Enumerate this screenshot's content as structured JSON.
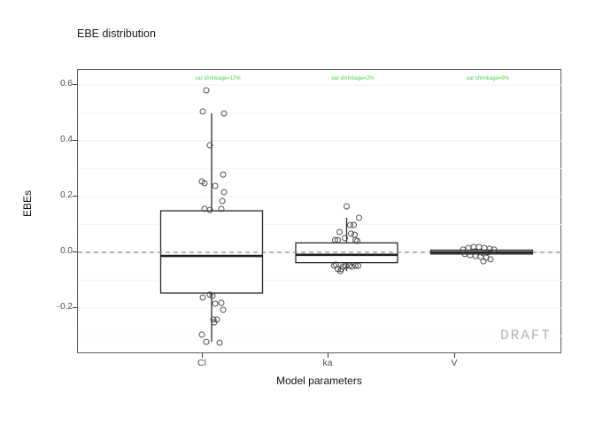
{
  "watermark": "DRAFT",
  "colors": {
    "annotation_green": "#4fd24f",
    "box_stroke": "#2b2b2b",
    "point_stroke": "#404040",
    "reference_line": "#8c8c8c",
    "grid_major": "#ededed",
    "grid_minor": "#f6f6f6",
    "watermark_gray": "#b3b3b3",
    "axis_text": "#4d4d4d"
  },
  "chart_data": {
    "type": "boxplot",
    "title": "EBE distribution",
    "xlabel": "Model parameters",
    "ylabel": "EBEs",
    "categories": [
      "Cl",
      "ka",
      "V"
    ],
    "y_ticks": [
      {
        "value": 0.6,
        "label": "0.6"
      },
      {
        "value": 0.4,
        "label": "0.4"
      },
      {
        "value": 0.2,
        "label": "0.2"
      },
      {
        "value": 0.0,
        "label": "0.0"
      },
      {
        "value": -0.2,
        "label": "-0.2"
      }
    ],
    "y_minor_ticks": [
      0.5,
      0.3,
      0.1,
      -0.1,
      -0.3
    ],
    "ylim": [
      -0.365,
      0.654
    ],
    "grid": true,
    "reference_line": 0.0,
    "legend": "none",
    "shrinkage_annotations": [
      {
        "category": "Cl",
        "label": "var shrinkage=17%"
      },
      {
        "category": "ka",
        "label": "var shrinkage=2%"
      },
      {
        "category": "V",
        "label": "var shrinkage=9%"
      }
    ],
    "boxes": [
      {
        "category": "Cl",
        "q1": -0.146,
        "median": -0.013,
        "q3": 0.149,
        "whisker_low": -0.321,
        "whisker_high": 0.498
      },
      {
        "category": "ka",
        "q1": -0.037,
        "median": -0.009,
        "q3": 0.034,
        "whisker_low": -0.067,
        "whisker_high": 0.124
      },
      {
        "category": "V",
        "q1": -0.006,
        "median": 0.0,
        "q3": 0.008,
        "whisker_low": -0.013,
        "whisker_high": 0.013
      }
    ],
    "points": [
      {
        "category": "Cl",
        "pts": [
          {
            "v": 0.581,
            "dx": -6
          },
          {
            "v": 0.505,
            "dx": -10
          },
          {
            "v": 0.498,
            "dx": 14
          },
          {
            "v": 0.384,
            "dx": -2
          },
          {
            "v": 0.279,
            "dx": 13
          },
          {
            "v": 0.254,
            "dx": -11
          },
          {
            "v": 0.248,
            "dx": -8
          },
          {
            "v": 0.238,
            "dx": 4
          },
          {
            "v": 0.216,
            "dx": 14
          },
          {
            "v": 0.184,
            "dx": 12
          },
          {
            "v": 0.156,
            "dx": -8
          },
          {
            "v": 0.152,
            "dx": -2
          },
          {
            "v": 0.156,
            "dx": 11
          },
          {
            "v": -0.152,
            "dx": -2
          },
          {
            "v": -0.156,
            "dx": 1
          },
          {
            "v": -0.162,
            "dx": -10
          },
          {
            "v": -0.181,
            "dx": 11
          },
          {
            "v": -0.184,
            "dx": 4
          },
          {
            "v": -0.206,
            "dx": 13
          },
          {
            "v": -0.241,
            "dx": 2
          },
          {
            "v": -0.241,
            "dx": 6
          },
          {
            "v": -0.251,
            "dx": 3
          },
          {
            "v": -0.295,
            "dx": -11
          },
          {
            "v": -0.321,
            "dx": -6
          },
          {
            "v": -0.324,
            "dx": 9
          }
        ]
      },
      {
        "category": "ka",
        "pts": [
          {
            "v": 0.165,
            "dx": 0
          },
          {
            "v": 0.124,
            "dx": 14
          },
          {
            "v": 0.098,
            "dx": 4
          },
          {
            "v": 0.098,
            "dx": 8
          },
          {
            "v": 0.073,
            "dx": -8
          },
          {
            "v": 0.067,
            "dx": 5
          },
          {
            "v": 0.063,
            "dx": 9
          },
          {
            "v": 0.051,
            "dx": -2
          },
          {
            "v": 0.044,
            "dx": -13
          },
          {
            "v": 0.044,
            "dx": -10
          },
          {
            "v": 0.044,
            "dx": 10
          },
          {
            "v": 0.041,
            "dx": 12
          },
          {
            "v": -0.044,
            "dx": -12
          },
          {
            "v": -0.048,
            "dx": -14
          },
          {
            "v": -0.048,
            "dx": -1
          },
          {
            "v": -0.048,
            "dx": 3
          },
          {
            "v": -0.048,
            "dx": 10
          },
          {
            "v": -0.048,
            "dx": 13
          },
          {
            "v": -0.051,
            "dx": -4
          },
          {
            "v": -0.051,
            "dx": 6
          },
          {
            "v": -0.06,
            "dx": -10
          },
          {
            "v": -0.06,
            "dx": -6
          },
          {
            "v": -0.067,
            "dx": -7
          }
        ]
      },
      {
        "category": "V",
        "pts": [
          {
            "v": 0.01,
            "dx": -21
          },
          {
            "v": 0.016,
            "dx": -15
          },
          {
            "v": 0.019,
            "dx": -9
          },
          {
            "v": 0.019,
            "dx": -3
          },
          {
            "v": 0.016,
            "dx": 3
          },
          {
            "v": 0.013,
            "dx": 9
          },
          {
            "v": 0.01,
            "dx": 14
          },
          {
            "v": 0.003,
            "dx": -8
          },
          {
            "v": 0.0,
            "dx": 7
          },
          {
            "v": -0.006,
            "dx": -19
          },
          {
            "v": -0.01,
            "dx": -13
          },
          {
            "v": -0.013,
            "dx": -7
          },
          {
            "v": -0.016,
            "dx": -1
          },
          {
            "v": -0.019,
            "dx": 5
          },
          {
            "v": -0.025,
            "dx": 10
          },
          {
            "v": -0.032,
            "dx": 2
          }
        ]
      }
    ]
  }
}
